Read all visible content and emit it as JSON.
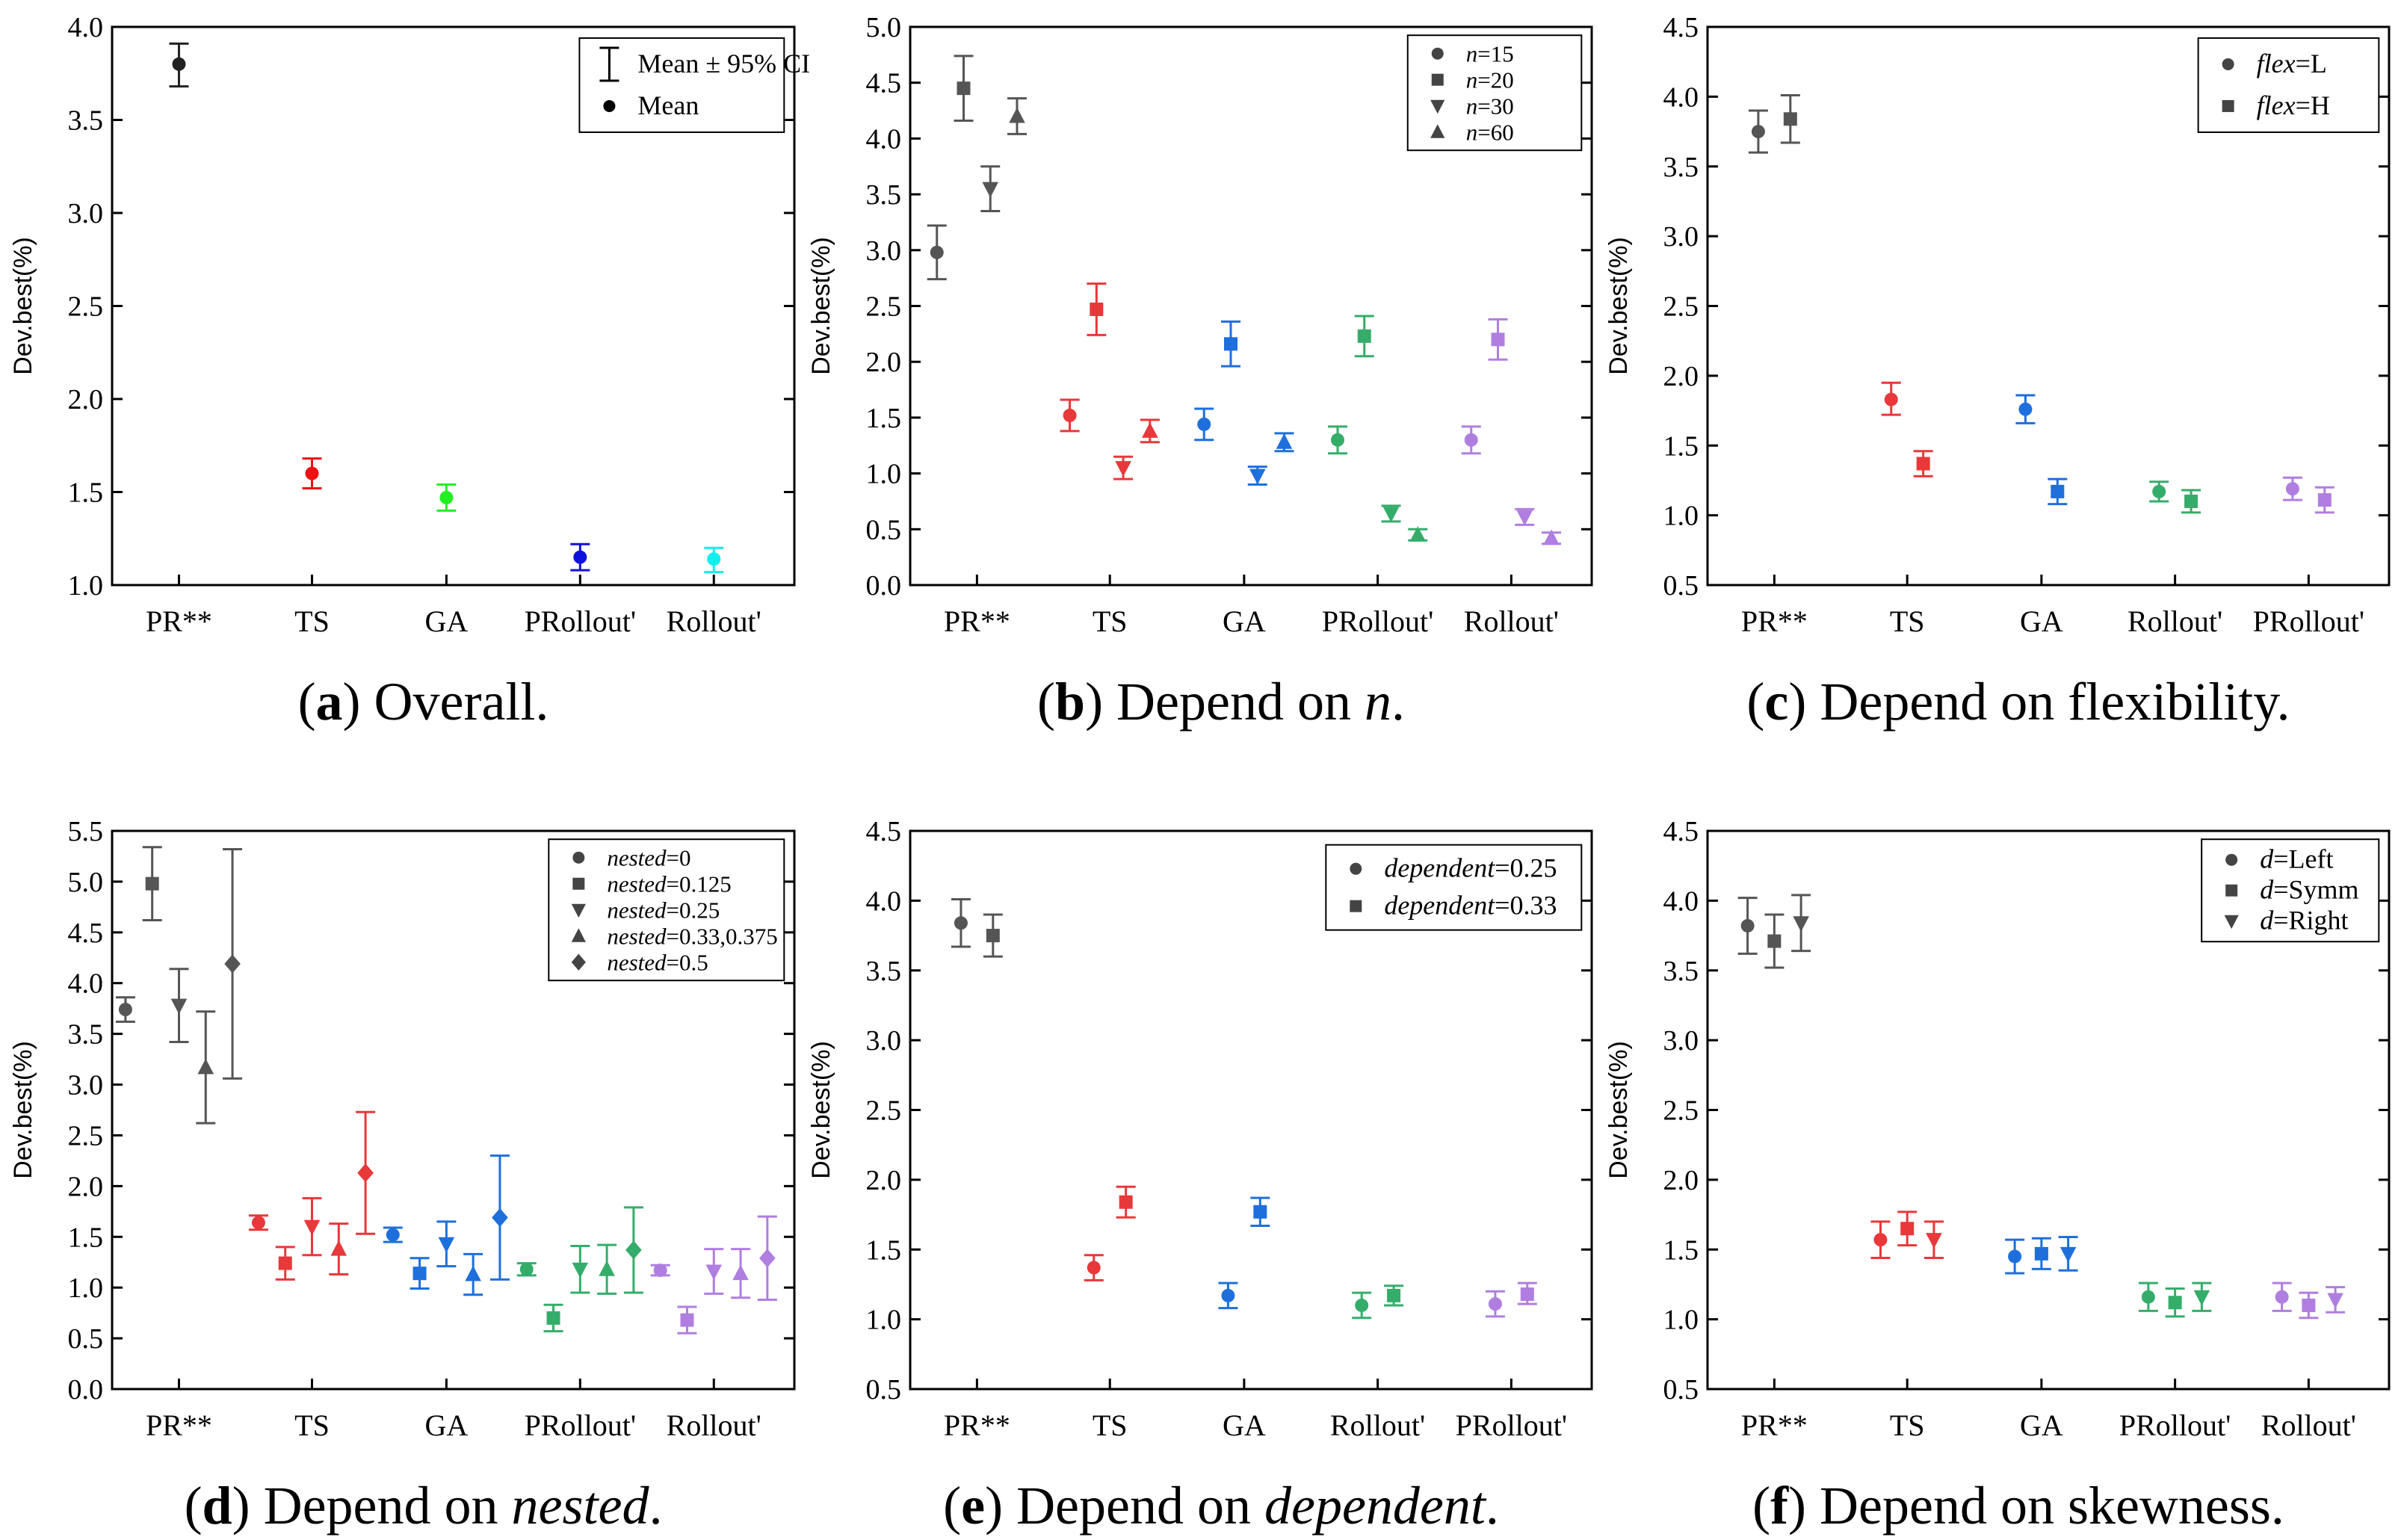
{
  "chart_data": [
    {
      "panel": "a",
      "type": "scatter",
      "caption_letter": "a",
      "caption_parts": [
        {
          "text": " Overall.",
          "italic": false
        }
      ],
      "ylabel": "Dev.best(%)",
      "ylim": [
        1.0,
        4.0
      ],
      "ytick_step": 0.5,
      "categories": [
        "PR**",
        "TS",
        "GA",
        "PRollout'",
        "Rollout'"
      ],
      "legend": [
        {
          "symbol": "errorbar",
          "label": "Mean ± 95% CI",
          "italic": ""
        },
        {
          "symbol": "circle",
          "label": "Mean",
          "italic": ""
        }
      ],
      "series": [
        {
          "name": "Mean",
          "marker": "circle",
          "offset": 0,
          "color_by_category": true,
          "colors": [
            "#222222",
            "#ee1111",
            "#22ee22",
            "#1111dd",
            "#11eeee"
          ],
          "means": [
            3.8,
            1.6,
            1.47,
            1.15,
            1.14
          ],
          "lower": [
            3.68,
            1.52,
            1.4,
            1.08,
            1.07
          ],
          "upper": [
            3.91,
            1.68,
            1.54,
            1.22,
            1.2
          ]
        }
      ]
    },
    {
      "panel": "b",
      "type": "scatter",
      "caption_letter": "b",
      "caption_parts": [
        {
          "text": " Depend on ",
          "italic": false
        },
        {
          "text": "n",
          "italic": true
        },
        {
          "text": ".",
          "italic": false
        }
      ],
      "ylabel": "Dev.best(%)",
      "ylim": [
        0.0,
        5.0
      ],
      "ytick_step": 0.5,
      "categories": [
        "PR**",
        "TS",
        "GA",
        "PRollout'",
        "Rollout'"
      ],
      "colors": [
        "#555555",
        "#e8383a",
        "#1e6fdc",
        "#35ad6a",
        "#b07ee0"
      ],
      "legend": [
        {
          "symbol": "circle",
          "italic": "n",
          "label": "=15"
        },
        {
          "symbol": "square",
          "italic": "n",
          "label": "=20"
        },
        {
          "symbol": "tri-down",
          "italic": "n",
          "label": "=30"
        },
        {
          "symbol": "tri-up",
          "italic": "n",
          "label": "=60"
        }
      ],
      "series": [
        {
          "name": "n=15",
          "marker": "circle",
          "offset": -0.3,
          "means": [
            2.98,
            1.52,
            1.44,
            1.3,
            1.3
          ],
          "lower": [
            2.74,
            1.38,
            1.3,
            1.18,
            1.18
          ],
          "upper": [
            3.22,
            1.66,
            1.58,
            1.42,
            1.42
          ]
        },
        {
          "name": "n=20",
          "marker": "square",
          "offset": -0.1,
          "means": [
            4.45,
            2.47,
            2.16,
            2.23,
            2.2
          ],
          "lower": [
            4.16,
            2.24,
            1.96,
            2.05,
            2.02
          ],
          "upper": [
            4.74,
            2.7,
            2.36,
            2.41,
            2.38
          ]
        },
        {
          "name": "n=30",
          "marker": "tri-down",
          "offset": 0.1,
          "means": [
            3.55,
            1.05,
            0.98,
            0.64,
            0.61
          ],
          "lower": [
            3.35,
            0.95,
            0.9,
            0.57,
            0.54
          ],
          "upper": [
            3.75,
            1.15,
            1.06,
            0.71,
            0.68
          ]
        },
        {
          "name": "n=60",
          "marker": "tri-up",
          "offset": 0.3,
          "means": [
            4.2,
            1.38,
            1.28,
            0.45,
            0.42
          ],
          "lower": [
            4.04,
            1.28,
            1.2,
            0.4,
            0.37
          ],
          "upper": [
            4.36,
            1.48,
            1.36,
            0.5,
            0.47
          ]
        }
      ]
    },
    {
      "panel": "c",
      "type": "scatter",
      "caption_letter": "c",
      "caption_parts": [
        {
          "text": " Depend on flexibility.",
          "italic": false
        }
      ],
      "ylabel": "Dev.best(%)",
      "ylim": [
        0.5,
        4.5
      ],
      "ytick_step": 0.5,
      "categories": [
        "PR**",
        "TS",
        "GA",
        "Rollout'",
        "PRollout'"
      ],
      "colors": [
        "#555555",
        "#e8383a",
        "#1e6fdc",
        "#35ad6a",
        "#b07ee0"
      ],
      "legend": [
        {
          "symbol": "circle",
          "italic": "flex",
          "label": "=L"
        },
        {
          "symbol": "square",
          "italic": "flex",
          "label": "=H"
        }
      ],
      "series": [
        {
          "name": "flex=L",
          "marker": "circle",
          "offset": -0.12,
          "means": [
            3.75,
            1.83,
            1.76,
            1.17,
            1.19
          ],
          "lower": [
            3.6,
            1.72,
            1.66,
            1.1,
            1.11
          ],
          "upper": [
            3.9,
            1.95,
            1.86,
            1.24,
            1.27
          ]
        },
        {
          "name": "flex=H",
          "marker": "square",
          "offset": 0.12,
          "means": [
            3.84,
            1.37,
            1.17,
            1.1,
            1.11
          ],
          "lower": [
            3.67,
            1.28,
            1.08,
            1.02,
            1.02
          ],
          "upper": [
            4.01,
            1.46,
            1.26,
            1.18,
            1.2
          ]
        }
      ]
    },
    {
      "panel": "d",
      "type": "scatter",
      "caption_letter": "d",
      "caption_parts": [
        {
          "text": " Depend on ",
          "italic": false
        },
        {
          "text": "nested",
          "italic": true
        },
        {
          "text": ".",
          "italic": false
        }
      ],
      "ylabel": "Dev.best(%)",
      "ylim": [
        0.0,
        5.5
      ],
      "ytick_step": 0.5,
      "categories": [
        "PR**",
        "TS",
        "GA",
        "PRollout'",
        "Rollout'"
      ],
      "colors": [
        "#555555",
        "#e8383a",
        "#1e6fdc",
        "#35ad6a",
        "#b07ee0"
      ],
      "legend": [
        {
          "symbol": "circle",
          "italic": "nested",
          "label": "=0"
        },
        {
          "symbol": "square",
          "italic": "nested",
          "label": "=0.125"
        },
        {
          "symbol": "tri-down",
          "italic": "nested",
          "label": "=0.25"
        },
        {
          "symbol": "tri-up",
          "italic": "nested",
          "label": "=0.33,0.375"
        },
        {
          "symbol": "diamond",
          "italic": "nested",
          "label": "=0.5"
        }
      ],
      "series": [
        {
          "name": "nested=0",
          "marker": "circle",
          "offset": -0.4,
          "means": [
            3.74,
            1.64,
            1.52,
            1.18,
            1.17
          ],
          "lower": [
            3.62,
            1.57,
            1.45,
            1.12,
            1.12
          ],
          "upper": [
            3.86,
            1.71,
            1.59,
            1.24,
            1.22
          ]
        },
        {
          "name": "nested=0.125",
          "marker": "square",
          "offset": -0.2,
          "means": [
            4.98,
            1.24,
            1.14,
            0.7,
            0.68
          ],
          "lower": [
            4.62,
            1.08,
            0.99,
            0.57,
            0.55
          ],
          "upper": [
            5.34,
            1.4,
            1.29,
            0.83,
            0.81
          ]
        },
        {
          "name": "nested=0.25",
          "marker": "tri-down",
          "offset": 0.0,
          "means": [
            3.78,
            1.6,
            1.43,
            1.18,
            1.16
          ],
          "lower": [
            3.42,
            1.32,
            1.21,
            0.95,
            0.94
          ],
          "upper": [
            4.14,
            1.88,
            1.65,
            1.41,
            1.38
          ]
        },
        {
          "name": "nested=0.33,0.375",
          "marker": "tri-up",
          "offset": 0.2,
          "means": [
            3.17,
            1.38,
            1.13,
            1.18,
            1.14
          ],
          "lower": [
            2.62,
            1.13,
            0.93,
            0.94,
            0.9
          ],
          "upper": [
            3.72,
            1.63,
            1.33,
            1.42,
            1.38
          ]
        },
        {
          "name": "nested=0.5",
          "marker": "diamond",
          "offset": 0.4,
          "means": [
            4.19,
            2.13,
            1.69,
            1.37,
            1.29
          ],
          "lower": [
            3.06,
            1.53,
            1.08,
            0.95,
            0.88
          ],
          "upper": [
            5.32,
            2.73,
            2.3,
            1.79,
            1.7
          ]
        }
      ]
    },
    {
      "panel": "e",
      "type": "scatter",
      "caption_letter": "e",
      "caption_parts": [
        {
          "text": " Depend on ",
          "italic": false
        },
        {
          "text": "dependent",
          "italic": true
        },
        {
          "text": ".",
          "italic": false
        }
      ],
      "ylabel": "Dev.best(%)",
      "ylim": [
        0.5,
        4.5
      ],
      "ytick_step": 0.5,
      "categories": [
        "PR**",
        "TS",
        "GA",
        "Rollout'",
        "PRollout'"
      ],
      "colors": [
        "#555555",
        "#e8383a",
        "#1e6fdc",
        "#35ad6a",
        "#b07ee0"
      ],
      "legend": [
        {
          "symbol": "circle",
          "italic": "dependent",
          "label": "=0.25"
        },
        {
          "symbol": "square",
          "italic": "dependent",
          "label": "=0.33"
        }
      ],
      "series": [
        {
          "name": "dependent=0.25",
          "marker": "circle",
          "offset": -0.12,
          "means": [
            3.84,
            1.37,
            1.17,
            1.1,
            1.11
          ],
          "lower": [
            3.67,
            1.28,
            1.08,
            1.01,
            1.02
          ],
          "upper": [
            4.01,
            1.46,
            1.26,
            1.19,
            1.2
          ]
        },
        {
          "name": "dependent=0.33",
          "marker": "square",
          "offset": 0.12,
          "means": [
            3.75,
            1.84,
            1.77,
            1.17,
            1.18
          ],
          "lower": [
            3.6,
            1.73,
            1.67,
            1.1,
            1.11
          ],
          "upper": [
            3.9,
            1.95,
            1.87,
            1.24,
            1.26
          ]
        }
      ]
    },
    {
      "panel": "f",
      "type": "scatter",
      "caption_letter": "f",
      "caption_parts": [
        {
          "text": " Depend on skewness.",
          "italic": false
        }
      ],
      "ylabel": "Dev.best(%)",
      "ylim": [
        0.5,
        4.5
      ],
      "ytick_step": 0.5,
      "categories": [
        "PR**",
        "TS",
        "GA",
        "PRollout'",
        "Rollout'"
      ],
      "colors": [
        "#555555",
        "#e8383a",
        "#1e6fdc",
        "#35ad6a",
        "#b07ee0"
      ],
      "legend": [
        {
          "symbol": "circle",
          "italic": "d",
          "label": "=Left"
        },
        {
          "symbol": "square",
          "italic": "d",
          "label": "=Symm"
        },
        {
          "symbol": "tri-down",
          "italic": "d",
          "label": "=Right"
        }
      ],
      "series": [
        {
          "name": "d=Left",
          "marker": "circle",
          "offset": -0.2,
          "means": [
            3.82,
            1.57,
            1.45,
            1.16,
            1.16
          ],
          "lower": [
            3.62,
            1.44,
            1.33,
            1.06,
            1.06
          ],
          "upper": [
            4.02,
            1.7,
            1.57,
            1.26,
            1.26
          ]
        },
        {
          "name": "d=Symm",
          "marker": "square",
          "offset": 0.0,
          "means": [
            3.71,
            1.65,
            1.47,
            1.12,
            1.1
          ],
          "lower": [
            3.52,
            1.53,
            1.36,
            1.02,
            1.01
          ],
          "upper": [
            3.9,
            1.77,
            1.58,
            1.22,
            1.19
          ]
        },
        {
          "name": "d=Right",
          "marker": "tri-down",
          "offset": 0.2,
          "means": [
            3.84,
            1.57,
            1.47,
            1.16,
            1.14
          ],
          "lower": [
            3.64,
            1.44,
            1.35,
            1.06,
            1.05
          ],
          "upper": [
            4.04,
            1.7,
            1.59,
            1.26,
            1.23
          ]
        }
      ]
    }
  ]
}
